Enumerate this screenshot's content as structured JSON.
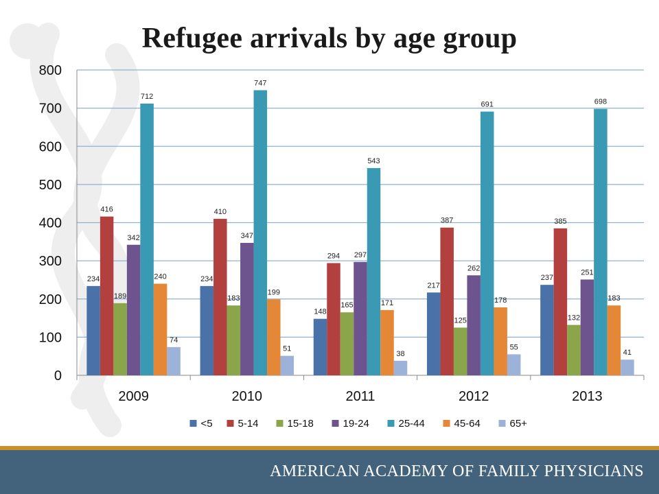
{
  "title": "Refugee arrivals by age group",
  "footer": {
    "org_name": "AMERICAN ACADEMY OF FAMILY PHYSICIANS"
  },
  "colors": {
    "<5": "#4a72a8",
    "5-14": "#b2403e",
    "15-18": "#8ba54a",
    "19-24": "#6e548e",
    "25-44": "#3b9ab3",
    "45-64": "#e48838",
    "65+": "#9cb2d8",
    "grid": "#8fb2d4",
    "footer_bar": "#43627c",
    "footer_stripe": "#c9922e"
  },
  "icons": [
    "watermark-logo-icon"
  ],
  "chart_data": {
    "type": "bar",
    "title": "Refugee arrivals by age group",
    "xlabel": "",
    "ylabel": "",
    "categories": [
      "2009",
      "2010",
      "2011",
      "2012",
      "2013"
    ],
    "ylim": [
      0,
      800
    ],
    "yticks": [
      0,
      100,
      200,
      300,
      400,
      500,
      600,
      700,
      800
    ],
    "grid": true,
    "legend_position": "bottom",
    "data_labels": true,
    "series": [
      {
        "name": "<5",
        "values": [
          234,
          234,
          148,
          217,
          237
        ]
      },
      {
        "name": "5-14",
        "values": [
          416,
          410,
          294,
          387,
          385
        ]
      },
      {
        "name": "15-18",
        "values": [
          189,
          183,
          165,
          125,
          132
        ]
      },
      {
        "name": "19-24",
        "values": [
          342,
          347,
          297,
          262,
          251
        ]
      },
      {
        "name": "25-44",
        "values": [
          712,
          747,
          543,
          691,
          698
        ]
      },
      {
        "name": "45-64",
        "values": [
          240,
          199,
          171,
          178,
          183
        ]
      },
      {
        "name": "65+",
        "values": [
          74,
          51,
          38,
          55,
          41
        ]
      }
    ]
  }
}
